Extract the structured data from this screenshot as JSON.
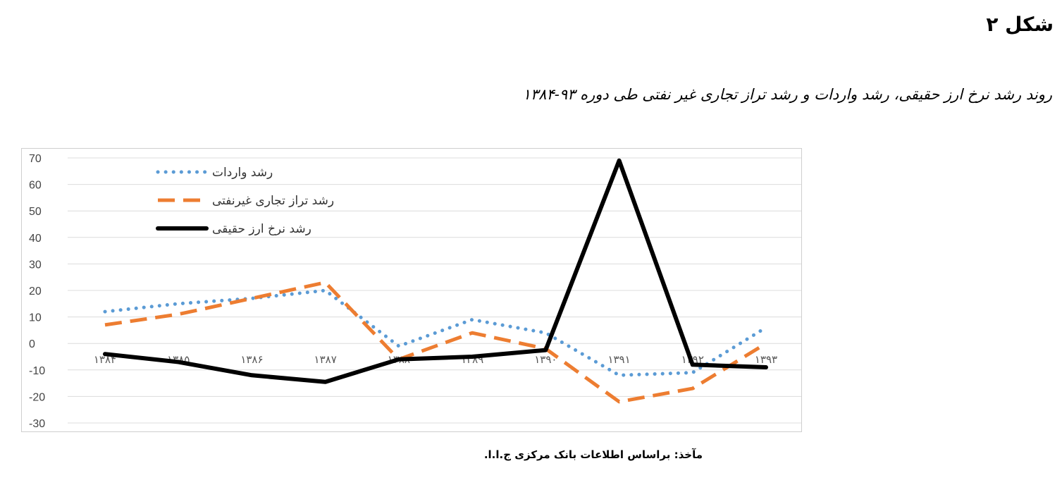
{
  "figure_label": "شکل ۲",
  "caption": "روند رشد نرخ ارز حقیقی، رشد واردات و رشد تراز تجاری غیر نفتی طی دوره ۹۳-۱۳۸۴",
  "source": "مآخذ: براساس اطلاعات بانک مرکزی ج.ا.ا.",
  "chart_data": {
    "type": "line",
    "categories": [
      "۱۳۸۴",
      "۱۳۸۵",
      "۱۳۸۶",
      "۱۳۸۷",
      "۱۳۸۸",
      "۱۳۸۹",
      "۱۳۹۰",
      "۱۳۹۱",
      "۱۳۹۲",
      "۱۳۹۳"
    ],
    "ylim": [
      -30,
      70
    ],
    "yticks": [
      70,
      60,
      50,
      40,
      30,
      20,
      10,
      0,
      -10,
      -20,
      -30
    ],
    "grid": true,
    "legend_position": "top-left",
    "series": [
      {
        "name": "رشد واردات",
        "style": "dotted",
        "color": "#5b9bd5",
        "values": [
          12,
          15,
          17,
          20,
          -1,
          9,
          4,
          -12,
          -11,
          6
        ]
      },
      {
        "name": "رشد تراز تجاری غیرنفتی",
        "style": "dashed",
        "color": "#ed7d31",
        "values": [
          7,
          11,
          17,
          23,
          -6,
          4,
          -2,
          -22,
          -17,
          0
        ]
      },
      {
        "name": "رشد نرخ ارز حقیقی",
        "style": "solid",
        "color": "#000000",
        "values": [
          -4,
          -7,
          -12,
          -14.5,
          -6,
          -5,
          -2.5,
          69,
          -8,
          -9
        ]
      }
    ]
  }
}
